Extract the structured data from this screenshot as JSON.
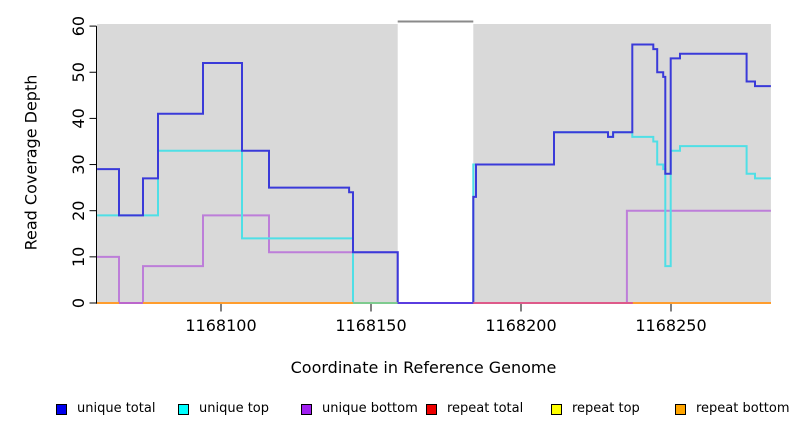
{
  "chart_data": {
    "type": "line",
    "subtype": "step",
    "title": "",
    "xlabel": "Coordinate in Reference Genome",
    "ylabel": "Read Coverage Depth",
    "xlim": [
      1168058.7,
      1168283.3
    ],
    "ylim": [
      0,
      60
    ],
    "grid": false,
    "legend_position": "bottom",
    "x_axis": {
      "ticks": [
        1168100,
        1168150,
        1168200,
        1168250
      ],
      "tick_labels": [
        "1168100",
        "1168150",
        "1168200",
        "1168250"
      ]
    },
    "y_axis": {
      "ticks": [
        0,
        10,
        20,
        30,
        40,
        50,
        60
      ],
      "tick_labels": [
        "0",
        "10",
        "20",
        "30",
        "40",
        "50",
        "60"
      ]
    },
    "background_regions": [
      [
        1168058.7,
        1168158.9
      ],
      [
        1168184.1,
        1168283.3
      ]
    ],
    "gap": [
      1168158.9,
      1168184.1
    ],
    "colors": {
      "region_background": "#d9d9d9",
      "gap_border": "#8a8a8a",
      "axis": "#000000"
    },
    "series": [
      {
        "name": "unique total",
        "color": "#3a3ad9",
        "end": 1168283.3,
        "points": [
          [
            1168058.7,
            29
          ],
          [
            1168066,
            19
          ],
          [
            1168074,
            27
          ],
          [
            1168079,
            41
          ],
          [
            1168094,
            52
          ],
          [
            1168107,
            33
          ],
          [
            1168116,
            25
          ],
          [
            1168142.7,
            24
          ],
          [
            1168144,
            11
          ],
          [
            1168158.9,
            0
          ],
          [
            1168184.1,
            23
          ],
          [
            1168185,
            30
          ],
          [
            1168211,
            37
          ],
          [
            1168229,
            36
          ],
          [
            1168230.7,
            37
          ],
          [
            1168237.1,
            56
          ],
          [
            1168244.1,
            55
          ],
          [
            1168245.4,
            50
          ],
          [
            1168247.4,
            49
          ],
          [
            1168248.1,
            28
          ],
          [
            1168249.9,
            53
          ],
          [
            1168253,
            54
          ],
          [
            1168275.2,
            48
          ],
          [
            1168278,
            47
          ]
        ]
      },
      {
        "name": "unique top",
        "color": "#4fdfe6",
        "end": 1168283.3,
        "points": [
          [
            1168058.7,
            19
          ],
          [
            1168079,
            33
          ],
          [
            1168107,
            14
          ],
          [
            1168144,
            0
          ],
          [
            1168184.1,
            30
          ],
          [
            1168211,
            37
          ],
          [
            1168229,
            36
          ],
          [
            1168230.7,
            37
          ],
          [
            1168237.1,
            36
          ],
          [
            1168244.1,
            35
          ],
          [
            1168245.4,
            30
          ],
          [
            1168247.4,
            29
          ],
          [
            1168248.1,
            8
          ],
          [
            1168249.9,
            33
          ],
          [
            1168253,
            34
          ],
          [
            1168275.2,
            28
          ],
          [
            1168278,
            27
          ]
        ]
      },
      {
        "name": "unique bottom",
        "color": "#bd7ed9",
        "end": 1168283.3,
        "points": [
          [
            1168058.7,
            10
          ],
          [
            1168066,
            0
          ],
          [
            1168074,
            8
          ],
          [
            1168094,
            19
          ],
          [
            1168116,
            11
          ],
          [
            1168158.9,
            0
          ],
          [
            1168235.3,
            20
          ]
        ]
      },
      {
        "name": "repeat total",
        "color": "#dd3344",
        "end": 1168283.3,
        "points": [
          [
            1168058.7,
            0
          ]
        ]
      },
      {
        "name": "repeat top",
        "color": "#f5e93d",
        "end": 1168283.3,
        "points": [
          [
            1168058.7,
            0
          ]
        ]
      },
      {
        "name": "repeat bottom",
        "color": "#ff9d2e",
        "end": 1168283.3,
        "points": [
          [
            1168058.7,
            0
          ]
        ]
      }
    ],
    "draw_order": [
      4,
      3,
      5,
      2,
      1,
      0
    ],
    "baseline_segments": [
      {
        "from": 1168058.7,
        "to": 1168066,
        "color": "#ff9d2e"
      },
      {
        "from": 1168066,
        "to": 1168074,
        "color": "#bb66cc"
      },
      {
        "from": 1168074,
        "to": 1168144,
        "color": "#ff9d2e"
      },
      {
        "from": 1168144,
        "to": 1168158.9,
        "color": "#7ecb8f"
      },
      {
        "from": 1168158.9,
        "to": 1168184.1,
        "color": "#5a3ce0"
      },
      {
        "from": 1168184.1,
        "to": 1168237.3,
        "color": "#de5a8a"
      },
      {
        "from": 1168237.3,
        "to": 1168283.3,
        "color": "#ff9d2e"
      }
    ]
  },
  "legend": {
    "items": [
      {
        "label": "unique total",
        "color": "#0000ee"
      },
      {
        "label": "unique top",
        "color": "#00ffff"
      },
      {
        "label": "unique bottom",
        "color": "#a020f0"
      },
      {
        "label": "repeat total",
        "color": "#ee0000"
      },
      {
        "label": "repeat top",
        "color": "#ffff00"
      },
      {
        "label": "repeat bottom",
        "color": "#ffa500"
      }
    ]
  }
}
